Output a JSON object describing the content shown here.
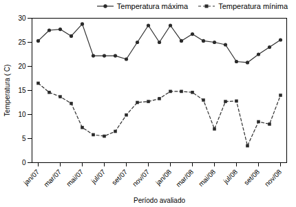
{
  "chart_data": {
    "type": "line",
    "categories": [
      "jan/07",
      null,
      "mar/07",
      null,
      "mai/07",
      null,
      "jul/07",
      null,
      "set/07",
      null,
      "nov/07",
      null,
      "jan/08",
      null,
      "mar/08",
      null,
      "mai/08",
      null,
      "jul/08",
      null,
      "set/08",
      null,
      "nov/08"
    ],
    "series": [
      {
        "name": "Temperatura máxima",
        "color": "#2b2b2b",
        "marker": "circle",
        "line_style": "solid",
        "values": [
          25.3,
          27.5,
          27.7,
          26.3,
          28.8,
          22.2,
          22.2,
          22.2,
          21.5,
          25.0,
          28.5,
          25.0,
          28.5,
          25.3,
          26.7,
          25.3,
          25.0,
          24.5,
          21.0,
          20.8,
          22.5,
          24.0,
          25.5
        ]
      },
      {
        "name": "Temperatura mínima",
        "color": "#2b2b2b",
        "marker": "square",
        "line_style": "dashed",
        "values": [
          16.5,
          14.6,
          13.7,
          12.3,
          7.3,
          5.8,
          5.5,
          6.5,
          9.9,
          12.5,
          12.7,
          13.3,
          14.8,
          14.8,
          14.6,
          13.0,
          7.0,
          12.7,
          12.8,
          3.5,
          8.5,
          8.0,
          14.0
        ]
      }
    ],
    "xlabel": "Período avaliado",
    "ylabel": "Temperatura ( C)",
    "ylim": [
      0,
      30
    ],
    "yticks": [
      0,
      5,
      10,
      15,
      20,
      25,
      30
    ],
    "grid": false,
    "legend": "upper right"
  }
}
